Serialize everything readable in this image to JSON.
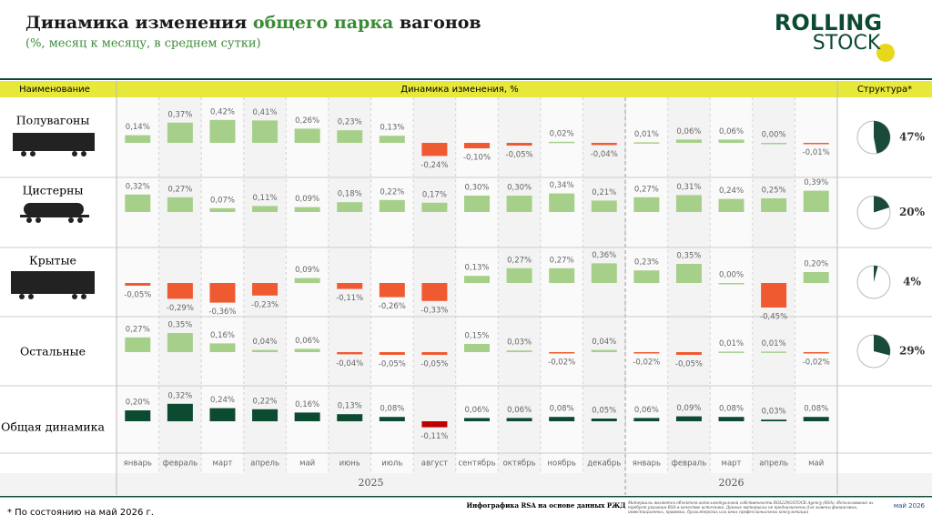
{
  "title_parts": [
    "Динамика изменения ",
    "общего парка",
    " вагонов"
  ],
  "subtitle": "(%, месяц к месяцу, в среднем сутки)",
  "logo": [
    "ROLLING",
    "STOCK"
  ],
  "table": {
    "headers": [
      "Наименование",
      "Динамика изменения, %",
      "Структура*"
    ],
    "months": [
      "январь",
      "февраль",
      "март",
      "апрель",
      "май",
      "июнь",
      "июль",
      "август",
      "сентябрь",
      "октябрь",
      "ноябрь",
      "декабрь",
      "январь",
      "февраль",
      "март",
      "апрель",
      "май"
    ],
    "years": [
      "2025",
      "2026"
    ]
  },
  "chart_data": [
    {
      "type": "bar",
      "title": "Полувагоны",
      "color": "#a6d08a",
      "negative_color": "#f05a30",
      "values": [
        0.14,
        0.37,
        0.42,
        0.41,
        0.26,
        0.23,
        0.13,
        -0.24,
        -0.1,
        -0.05,
        0.02,
        -0.04,
        0.01,
        0.06,
        0.06,
        0.0,
        -0.01
      ],
      "value_labels": [
        "0,14%",
        "0,37%",
        "0,42%",
        "0,41%",
        "0,26%",
        "0,23%",
        "0,13%",
        "-0,24%",
        "-0,10%",
        "-0,05%",
        "0,02%",
        "-0,04%",
        "0,01%",
        "0,06%",
        "0,06%",
        "0,00%",
        "-0,01%"
      ],
      "share": 47,
      "share_label": "47%"
    },
    {
      "type": "bar",
      "title": "Цистерны",
      "color": "#a6d08a",
      "negative_color": "#f05a30",
      "values": [
        0.32,
        0.27,
        0.07,
        0.11,
        0.09,
        0.18,
        0.22,
        0.17,
        0.3,
        0.3,
        0.34,
        0.21,
        0.27,
        0.31,
        0.24,
        0.25,
        0.39
      ],
      "value_labels": [
        "0,32%",
        "0,27%",
        "0,07%",
        "0,11%",
        "0,09%",
        "0,18%",
        "0,22%",
        "0,17%",
        "0,30%",
        "0,30%",
        "0,34%",
        "0,21%",
        "0,27%",
        "0,31%",
        "0,24%",
        "0,25%",
        "0,39%"
      ],
      "share": 20,
      "share_label": "20%"
    },
    {
      "type": "bar",
      "title": "Крытые",
      "color": "#a6d08a",
      "negative_color": "#f05a30",
      "values": [
        -0.05,
        -0.29,
        -0.36,
        -0.23,
        0.09,
        -0.11,
        -0.26,
        -0.33,
        0.13,
        0.27,
        0.27,
        0.36,
        0.23,
        0.35,
        0.0,
        -0.45,
        0.2
      ],
      "value_labels": [
        "-0,05%",
        "-0,29%",
        "-0,36%",
        "-0,23%",
        "0,09%",
        "-0,11%",
        "-0,26%",
        "-0,33%",
        "0,13%",
        "0,27%",
        "0,27%",
        "0,36%",
        "0,23%",
        "0,35%",
        "0,00%",
        "-0,45%",
        "0,20%"
      ],
      "share": 4,
      "share_label": "4%"
    },
    {
      "type": "bar",
      "title": "Остальные",
      "color": "#a6d08a",
      "negative_color": "#f05a30",
      "values": [
        0.27,
        0.35,
        0.16,
        0.04,
        0.06,
        -0.04,
        -0.05,
        -0.05,
        0.15,
        0.03,
        -0.02,
        0.04,
        -0.02,
        -0.05,
        0.01,
        0.01,
        -0.02
      ],
      "value_labels": [
        "0,27%",
        "0,35%",
        "0,16%",
        "0,04%",
        "0,06%",
        "-0,04%",
        "-0,05%",
        "-0,05%",
        "0,15%",
        "0,03%",
        "-0,02%",
        "0,04%",
        "-0,02%",
        "-0,05%",
        "0,01%",
        "0,01%",
        "-0,02%"
      ],
      "share": 29,
      "share_label": "29%"
    },
    {
      "type": "bar",
      "title": "Общая динамика",
      "color": "#0d4a32",
      "negative_color": "#c00000",
      "values": [
        0.2,
        0.32,
        0.24,
        0.22,
        0.16,
        0.13,
        0.08,
        -0.11,
        0.06,
        0.06,
        0.08,
        0.05,
        0.06,
        0.09,
        0.08,
        0.03,
        0.08
      ],
      "value_labels": [
        "0,20%",
        "0,32%",
        "0,24%",
        "0,22%",
        "0,16%",
        "0,13%",
        "0,08%",
        "-0,11%",
        "0,06%",
        "0,06%",
        "0,08%",
        "0,05%",
        "0,06%",
        "0,09%",
        "0,08%",
        "0,03%",
        "0,08%"
      ]
    }
  ],
  "footer": {
    "note": "* По состоянию на май 2026 г.",
    "source": "Инфографика RSA на основе данных РЖД",
    "disclaimer": "Материалы являются объектом интеллектуальной собственности ROLLINGSTOCK Agency (RSA). Использование их требует указания RSA в качестве источника. Данные материалы не предназначены для замены финансовых, инвестиционных, правовых, бухгалтерских или иных профессиональных консультаций",
    "date": "май 2026"
  }
}
